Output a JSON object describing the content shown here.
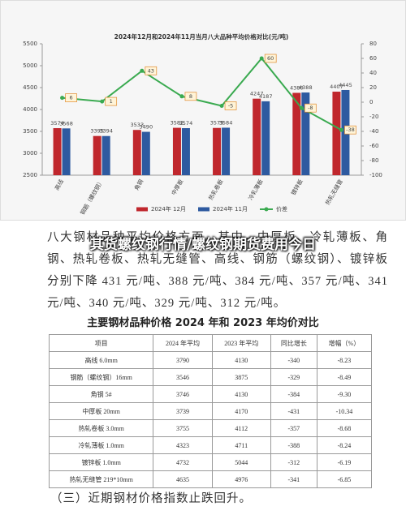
{
  "chart_data": {
    "type": "bar-line",
    "title": "2024年12月和2024年11月当月八大品种平均价格对比(元/吨)",
    "categories": [
      "高线",
      "钢筋（螺纹钢）",
      "角钢",
      "中厚板",
      "热轧卷板",
      "冷轧薄板",
      "镀锌板",
      "热轧无缝管"
    ],
    "series": [
      {
        "name": "2024年 12月",
        "color": "#c0272d",
        "type": "bar",
        "values": [
          3574,
          3395,
          3533,
          3582,
          3579,
          4247,
          4380,
          4407
        ]
      },
      {
        "name": "2024年 11月",
        "color": "#2e5aa0",
        "type": "bar",
        "values": [
          3568,
          3394,
          3490,
          3574,
          3584,
          4187,
          4388,
          4445
        ]
      },
      {
        "name": "价差",
        "color": "#3aaa50",
        "type": "line",
        "axis": "y2",
        "values": [
          6,
          1,
          43,
          8,
          -5,
          60,
          -8,
          -38
        ]
      }
    ],
    "ylim": [
      2500,
      5500
    ],
    "yticks": [
      2500,
      3000,
      3500,
      4000,
      4500,
      5000,
      5500
    ],
    "y2lim": [
      -100,
      80
    ],
    "y2ticks": [
      -100,
      -80,
      -60,
      -40,
      -20,
      0,
      20,
      40,
      60,
      80
    ],
    "legend": "bottom"
  },
  "overlay_title": "其货螺纹钢行情/螺纹钢期货费用今日",
  "paragraph": "八大钢材品种平均价格方面，其中，中厚板、冷轧薄板、角钢、热轧卷板、热轧无缝管、高线、钢筋（螺纹钢）、镀锌板分别下降 431 元/吨、388 元/吨、384 元/吨、357 元/吨、341 元/吨、340 元/吨、329 元/吨、312 元/吨。",
  "table_title": "主要钢材品种价格 2024 年和 2023 年均价对比",
  "table": {
    "header": [
      "项目",
      "2024 年平均",
      "2023 年平均",
      "同比增长",
      "增幅（%）"
    ],
    "rows": [
      [
        "高线 6.0mm",
        "3790",
        "4130",
        "-340",
        "-8.23"
      ],
      [
        "钢筋（螺纹钢）16mm",
        "3546",
        "3875",
        "-329",
        "-8.49"
      ],
      [
        "角钢 5#",
        "3746",
        "4130",
        "-384",
        "-9.30"
      ],
      [
        "中厚板 20mm",
        "3739",
        "4170",
        "-431",
        "-10.34"
      ],
      [
        "热轧卷板 3.0mm",
        "3755",
        "4112",
        "-357",
        "-8.68"
      ],
      [
        "冷轧薄板 1.0mm",
        "4323",
        "4711",
        "-388",
        "-8.24"
      ],
      [
        "镀锌板 1.0mm",
        "4732",
        "5044",
        "-312",
        "-6.19"
      ],
      [
        "热轧无缝管 219*10mm",
        "4635",
        "4976",
        "-341",
        "-6.85"
      ]
    ]
  },
  "footer": "（三）近期钢材价格指数止跌回升。"
}
